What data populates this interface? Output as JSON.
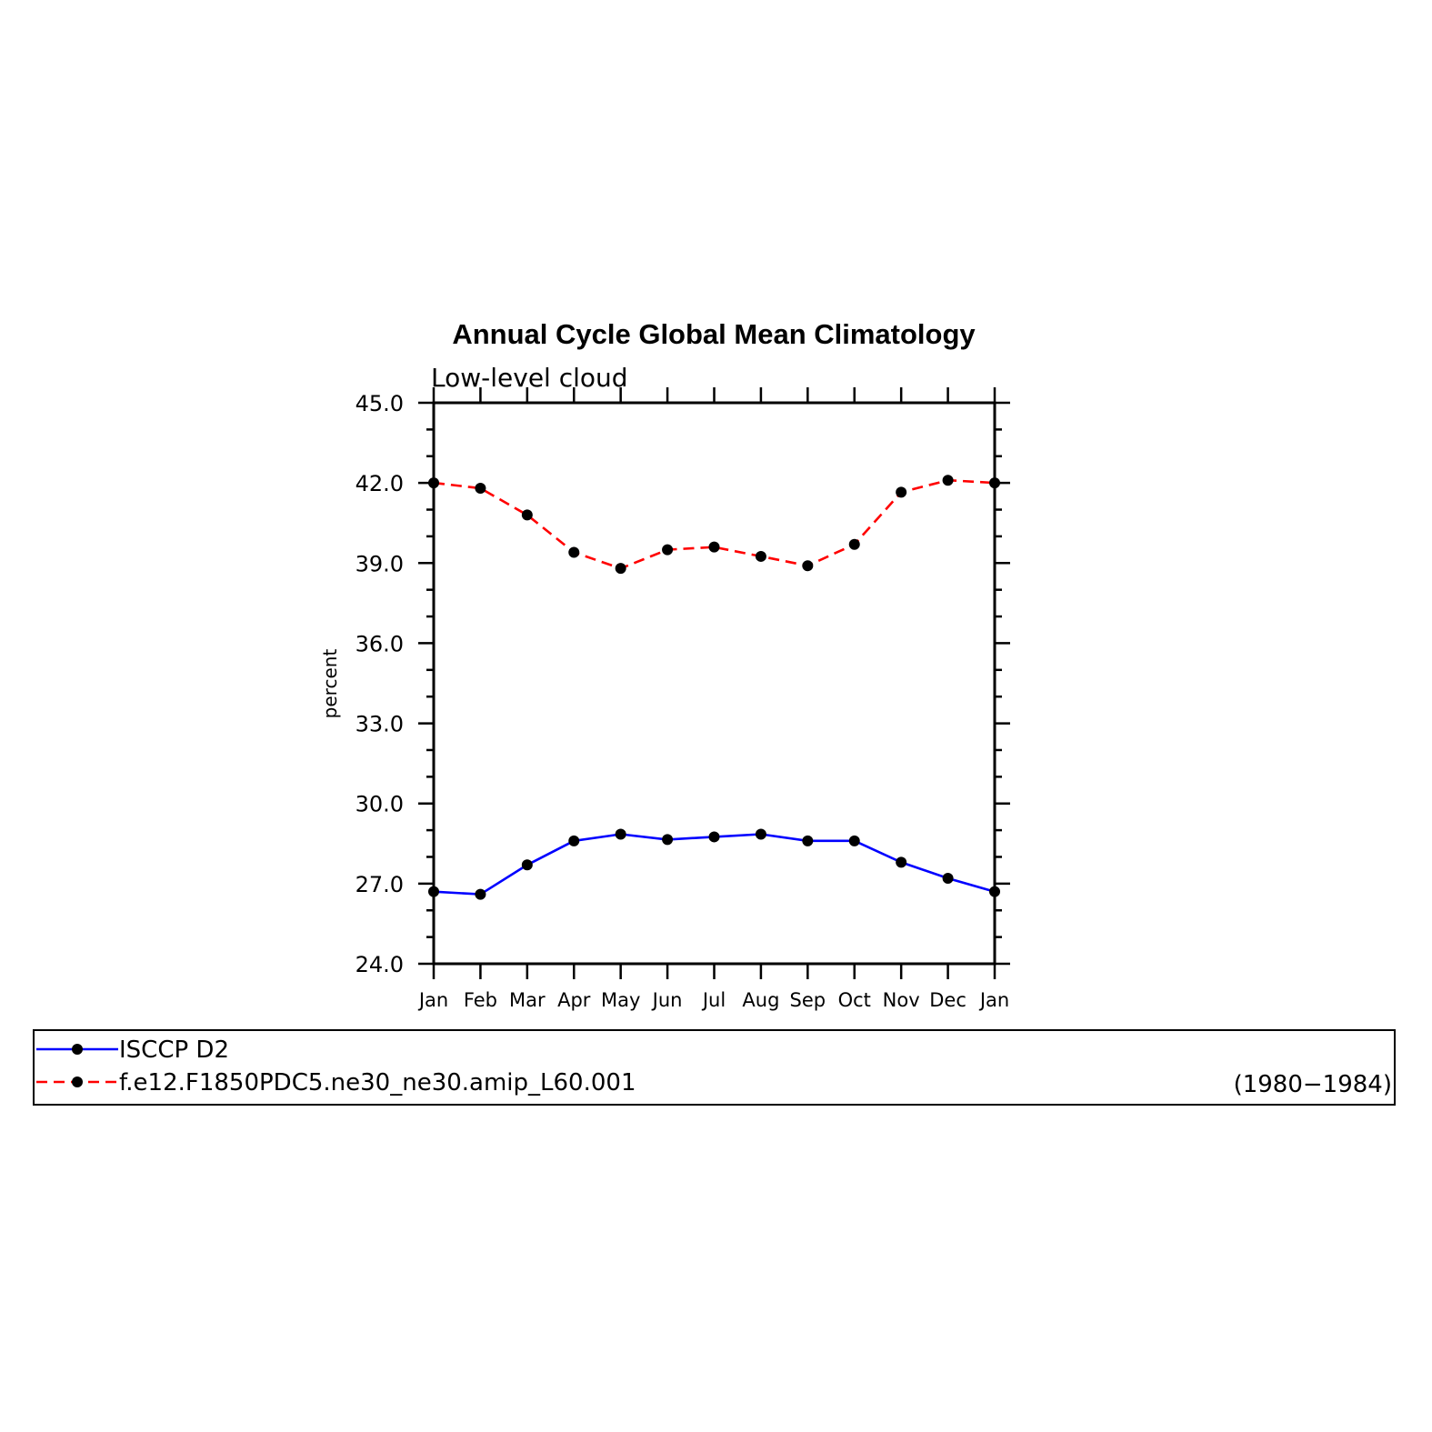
{
  "colors": {
    "series_1": "#0000ff",
    "series_2": "#ff0000",
    "marker": "#000000",
    "axis": "#000000"
  },
  "chart_data": {
    "type": "line",
    "title": "Annual Cycle Global Mean Climatology",
    "subtitle": "Low-level cloud",
    "ylabel": "percent",
    "xlabel": "",
    "ylim": [
      24.0,
      45.0
    ],
    "yticks": [
      "45.0",
      "42.0",
      "39.0",
      "36.0",
      "33.0",
      "30.0",
      "27.0",
      "24.0"
    ],
    "ytick_values": [
      45.0,
      42.0,
      39.0,
      36.0,
      33.0,
      30.0,
      27.0,
      24.0
    ],
    "categories": [
      "Jan",
      "Feb",
      "Mar",
      "Apr",
      "May",
      "Jun",
      "Jul",
      "Aug",
      "Sep",
      "Oct",
      "Nov",
      "Dec",
      "Jan"
    ],
    "grid": false,
    "legend_position": "bottom",
    "period": "(1980−1984)",
    "series": [
      {
        "name": "ISCCP D2",
        "line_style": "solid",
        "color": "#0000ff",
        "values": [
          26.7,
          26.6,
          27.7,
          28.6,
          28.85,
          28.65,
          28.75,
          28.85,
          28.6,
          28.6,
          27.8,
          27.2,
          26.7
        ]
      },
      {
        "name": "f.e12.F1850PDC5.ne30_ne30.amip_L60.001",
        "line_style": "dashed",
        "color": "#ff0000",
        "values": [
          42.0,
          41.8,
          40.8,
          39.4,
          38.8,
          39.5,
          39.6,
          39.25,
          38.9,
          39.7,
          41.65,
          42.1,
          42.0
        ]
      }
    ]
  }
}
